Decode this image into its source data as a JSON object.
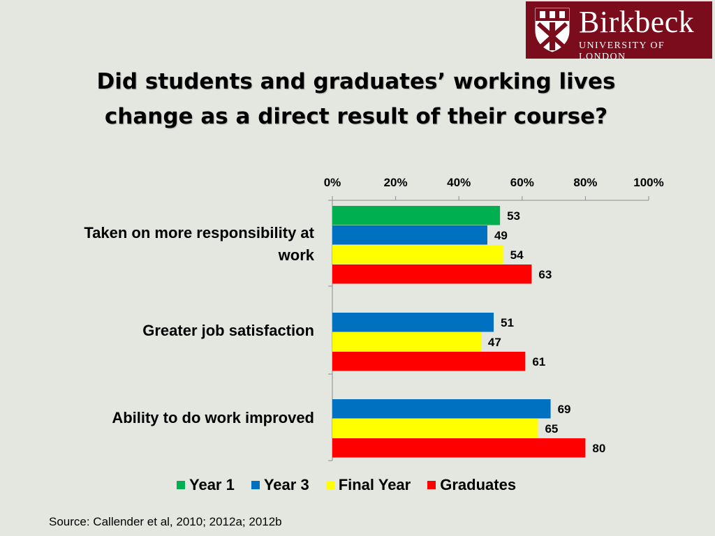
{
  "slide": {
    "title_line1": "Did students and graduates’ working lives",
    "title_line2": "change as a direct result of their course?",
    "source": "Source: Callender et al, 2010; 2012a; 2012b"
  },
  "logo": {
    "name": "Birkbeck",
    "subtitle": "UNIVERSITY OF LONDON"
  },
  "chart_data": {
    "type": "bar",
    "orientation": "horizontal",
    "categories": [
      "Taken on more responsibility at work",
      "Greater job satisfaction",
      "Ability to do work improved"
    ],
    "category_lines": [
      [
        "Taken on more responsibility at",
        "work"
      ],
      [
        "Greater job satisfaction"
      ],
      [
        "Ability to do work improved"
      ]
    ],
    "series": [
      {
        "name": "Year 1",
        "color": "#00b050",
        "values": [
          53,
          null,
          null
        ]
      },
      {
        "name": "Year 3",
        "color": "#0070c0",
        "values": [
          49,
          51,
          69
        ]
      },
      {
        "name": "Final Year",
        "color": "#ffff00",
        "values": [
          54,
          47,
          65
        ]
      },
      {
        "name": "Graduates",
        "color": "#ff0000",
        "values": [
          63,
          61,
          80
        ]
      }
    ],
    "xlim": [
      0,
      100
    ],
    "x_ticks": [
      "0%",
      "20%",
      "40%",
      "60%",
      "80%",
      "100%"
    ],
    "x_axis_position": "top",
    "data_labels": true,
    "grid": false,
    "legend": "bottom"
  }
}
